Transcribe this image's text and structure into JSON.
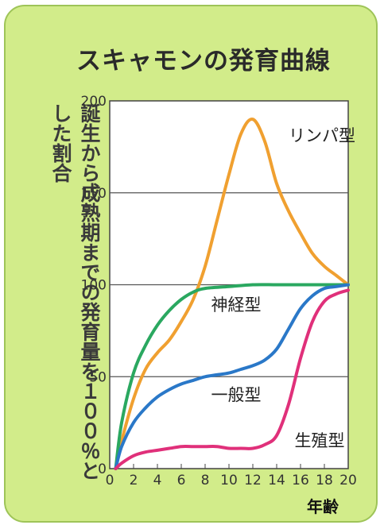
{
  "title": "スキャモンの発育曲線",
  "ylabel": "誕生から成熟期までの発育量を１００％とした割合",
  "xlabel": "年齢",
  "chart_data": {
    "type": "line",
    "title": "スキャモンの発育曲線",
    "xlabel": "年齢",
    "ylabel": "誕生から成熟期までの発育量を１００％とした割合",
    "xlim": [
      0,
      20
    ],
    "ylim": [
      0,
      200
    ],
    "x_ticks": [
      "0",
      "2",
      "4",
      "6",
      "8",
      "10",
      "12",
      "14",
      "16",
      "18",
      "20"
    ],
    "y_ticks": [
      "0",
      "50",
      "100",
      "150",
      "200"
    ],
    "grid": "horizontal",
    "series": [
      {
        "name": "リンパ型",
        "color": "#f0a030",
        "x": [
          0.5,
          1,
          2,
          3,
          4,
          5,
          6,
          7,
          8,
          9,
          10,
          11,
          12,
          13,
          14,
          15,
          16,
          17,
          18,
          19,
          20
        ],
        "y": [
          0,
          15,
          38,
          54,
          63,
          70,
          80,
          92,
          110,
          135,
          160,
          182,
          190,
          178,
          155,
          140,
          128,
          117,
          110,
          105,
          100
        ]
      },
      {
        "name": "神経型",
        "color": "#2aa860",
        "x": [
          0.5,
          1,
          2,
          3,
          4,
          5,
          6,
          7,
          8,
          10,
          12,
          14,
          16,
          18,
          20
        ],
        "y": [
          0,
          25,
          52,
          67,
          78,
          86,
          92,
          96,
          98,
          99,
          100,
          100,
          100,
          100,
          100
        ]
      },
      {
        "name": "一般型",
        "color": "#2a78c8",
        "x": [
          0.5,
          1,
          2,
          3,
          4,
          5,
          6,
          7,
          8,
          9,
          10,
          11,
          12,
          13,
          14,
          15,
          16,
          17,
          18,
          19,
          20
        ],
        "y": [
          0,
          12,
          25,
          33,
          39,
          43,
          46,
          48,
          50,
          51,
          52,
          54,
          56,
          59,
          65,
          76,
          87,
          94,
          98,
          99,
          100
        ]
      },
      {
        "name": "生殖型",
        "color": "#e0307a",
        "x": [
          0.5,
          1,
          2,
          3,
          4,
          5,
          6,
          7,
          8,
          9,
          10,
          11,
          12,
          13,
          14,
          15,
          16,
          17,
          18,
          19,
          20
        ],
        "y": [
          0,
          3,
          7,
          9,
          10,
          11,
          12,
          12,
          12,
          12,
          11,
          11,
          11,
          13,
          18,
          35,
          60,
          80,
          91,
          95,
          97
        ]
      }
    ],
    "annotations": [
      "リンパ型",
      "神経型",
      "一般型",
      "生殖型"
    ]
  }
}
